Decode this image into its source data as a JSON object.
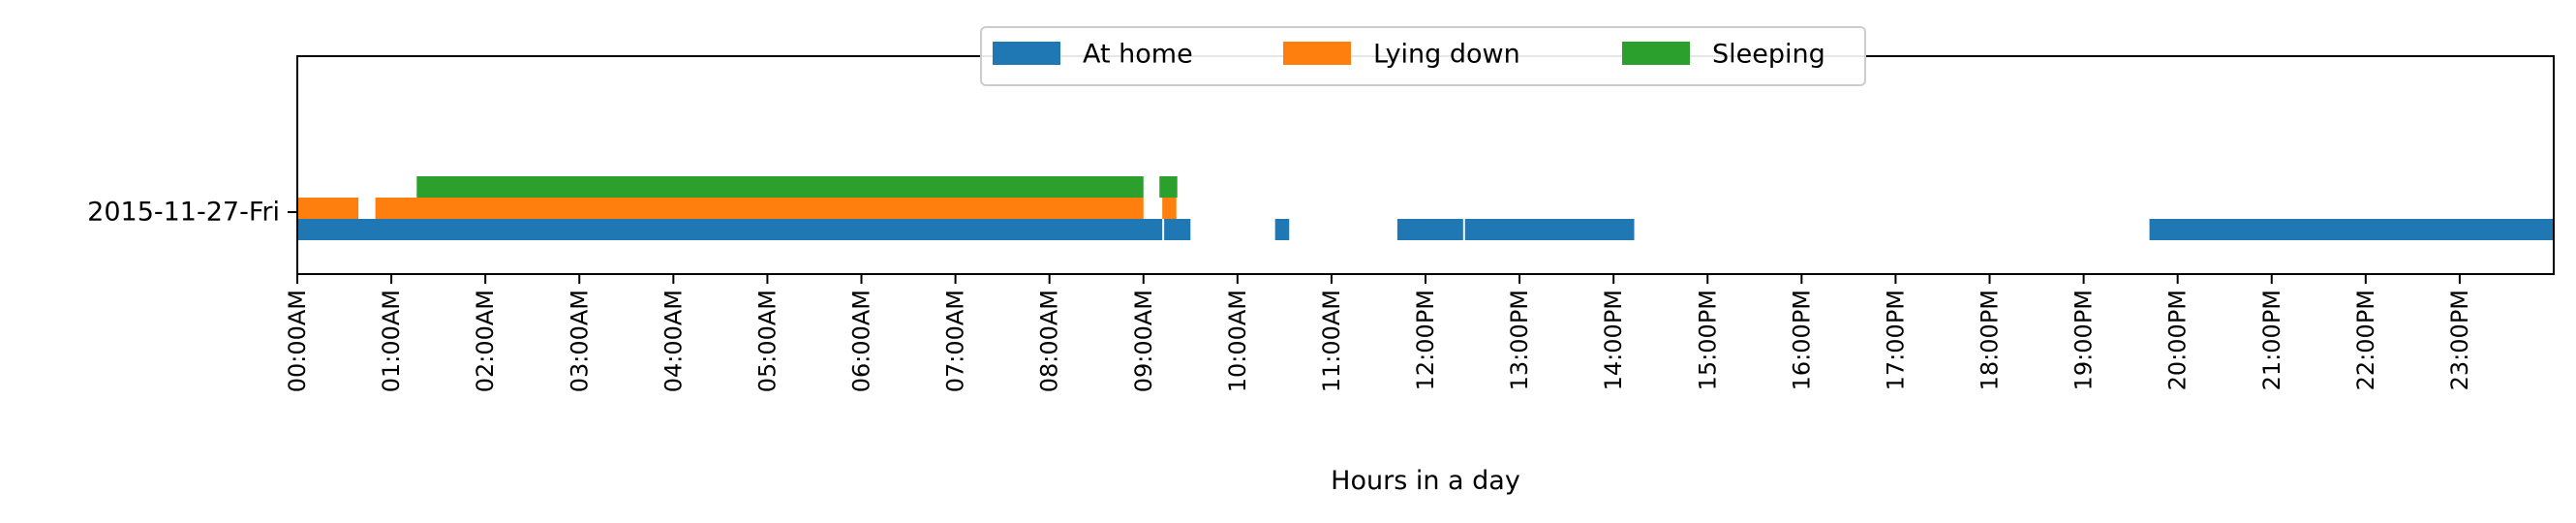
{
  "chart_data": {
    "type": "bar",
    "orientation": "horizontal-timeline",
    "title": "",
    "xlabel": "Hours in a day",
    "ylabel": "",
    "xlim": [
      0,
      24
    ],
    "categories": [
      "2015-11-27-Fri"
    ],
    "x_ticks": [
      "00:00AM",
      "01:00AM",
      "02:00AM",
      "03:00AM",
      "04:00AM",
      "05:00AM",
      "06:00AM",
      "07:00AM",
      "08:00AM",
      "09:00AM",
      "10:00AM",
      "11:00AM",
      "12:00PM",
      "13:00PM",
      "14:00PM",
      "15:00PM",
      "16:00PM",
      "17:00PM",
      "18:00PM",
      "19:00PM",
      "20:00PM",
      "21:00PM",
      "22:00PM",
      "23:00PM"
    ],
    "legend": {
      "placement": "top-center",
      "columns": 3
    },
    "grid": false,
    "series": [
      {
        "name": "At home",
        "color": "#1f77b4",
        "intervals": [
          [
            0,
            9.2
          ],
          [
            9.22,
            9.5
          ],
          [
            10.4,
            10.55
          ],
          [
            11.7,
            12.4
          ],
          [
            12.42,
            14.22
          ],
          [
            19.7,
            24.0
          ]
        ]
      },
      {
        "name": "Lying down",
        "color": "#ff7f0e",
        "intervals": [
          [
            0,
            0.65
          ],
          [
            0.83,
            9.0
          ],
          [
            9.2,
            9.35
          ]
        ]
      },
      {
        "name": "Sleeping",
        "color": "#2ca02c",
        "intervals": [
          [
            1.27,
            9.0
          ],
          [
            9.17,
            9.36
          ]
        ]
      }
    ]
  }
}
